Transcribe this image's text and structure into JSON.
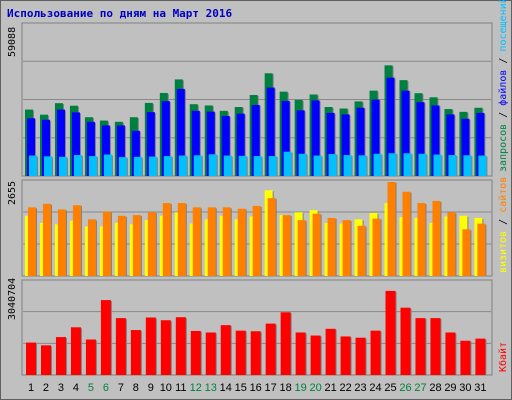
{
  "chart_data": [
    {
      "type": "bar",
      "title": "Использование по дням на Март 2016",
      "categories": [
        "1",
        "2",
        "3",
        "4",
        "5",
        "6",
        "7",
        "8",
        "9",
        "10",
        "11",
        "12",
        "13",
        "14",
        "15",
        "16",
        "17",
        "18",
        "19",
        "20",
        "21",
        "22",
        "23",
        "24",
        "25",
        "26",
        "27",
        "28",
        "29",
        "30",
        "31"
      ],
      "weekend_days": [
        "5",
        "6",
        "12",
        "13",
        "19",
        "20",
        "26",
        "27"
      ],
      "panel": "requests-files-visits",
      "ymax_label": "59088",
      "ylim": [
        0,
        59088
      ],
      "series": [
        {
          "name": "запросов",
          "color": "#008040",
          "values": [
            26000,
            24000,
            28500,
            27500,
            23000,
            21700,
            21200,
            23000,
            28600,
            32500,
            37800,
            28100,
            27600,
            25500,
            27000,
            31700,
            40200,
            33000,
            29800,
            31900,
            27000,
            26400,
            29200,
            33400,
            43300,
            37500,
            32400,
            30800,
            26200,
            25100,
            26700
          ]
        },
        {
          "name": "файлов",
          "color": "#0000ff",
          "values": [
            22600,
            22000,
            26000,
            24900,
            21200,
            19800,
            19800,
            17700,
            25000,
            29300,
            34100,
            25500,
            25200,
            23500,
            24400,
            27800,
            34600,
            29400,
            25700,
            29600,
            24700,
            24100,
            26700,
            29900,
            38500,
            33400,
            28900,
            27600,
            24100,
            22400,
            24700
          ]
        },
        {
          "name": "посещений страниц",
          "color": "#00c0ff",
          "values": [
            8000,
            7700,
            7500,
            8200,
            7800,
            8400,
            7400,
            7500,
            7600,
            7800,
            8000,
            8100,
            8500,
            8000,
            7900,
            7800,
            7800,
            9500,
            8700,
            8000,
            8600,
            8200,
            8100,
            8700,
            8900,
            8900,
            8700,
            8400,
            8200,
            8100,
            8000
          ]
        }
      ],
      "y_axis_text_parts": [
        {
          "text": "запросов",
          "color": "#008040"
        },
        {
          "text": " / ",
          "color": "#000000"
        },
        {
          "text": "файлов",
          "color": "#0000ff"
        },
        {
          "text": " / ",
          "color": "#000000"
        },
        {
          "text": "посещений страниц",
          "color": "#00c0ff"
        }
      ]
    },
    {
      "type": "bar",
      "panel": "visits-sites",
      "ymax_label": "2655",
      "ylim": [
        0,
        2655
      ],
      "series": [
        {
          "name": "визитов",
          "color": "#ffff00",
          "values": [
            1700,
            1500,
            1460,
            1560,
            1400,
            1400,
            1500,
            1460,
            1580,
            1700,
            1800,
            1480,
            1600,
            1700,
            1600,
            1680,
            2420,
            1720,
            1800,
            1860,
            1500,
            1480,
            1600,
            1780,
            2060,
            1660,
            1640,
            1500,
            1680,
            1700,
            1640
          ]
        },
        {
          "name": "сайтов",
          "color": "#ff8000",
          "values": [
            1940,
            2040,
            1880,
            2000,
            1600,
            1820,
            1700,
            1720,
            1800,
            2060,
            2060,
            1940,
            1940,
            1940,
            1900,
            1980,
            2200,
            1720,
            1580,
            1760,
            1640,
            1580,
            1420,
            1620,
            2655,
            2380,
            2060,
            2120,
            1800,
            1320,
            1480
          ]
        }
      ],
      "y_axis_text_parts": [
        {
          "text": "визитов",
          "color": "#ffff00"
        },
        {
          "text": " / ",
          "color": "#000000"
        },
        {
          "text": "сайтов",
          "color": "#ff8000"
        }
      ]
    },
    {
      "type": "bar",
      "panel": "kbytes",
      "ymax_label": "3040704",
      "ylim": [
        0,
        3040704
      ],
      "series": [
        {
          "name": "Кбайт",
          "color": "#ff0000",
          "values": [
            1060000,
            970000,
            1240000,
            1560000,
            1160000,
            2450000,
            1860000,
            1470000,
            1880000,
            1790000,
            1890000,
            1440000,
            1390000,
            1630000,
            1450000,
            1430000,
            1680000,
            2050000,
            1390000,
            1290000,
            1510000,
            1260000,
            1220000,
            1450000,
            2750000,
            2200000,
            1860000,
            1860000,
            1390000,
            1120000,
            1190000
          ]
        }
      ],
      "y_axis_text_parts": [
        {
          "text": "Кбайт",
          "color": "#ff0000"
        }
      ]
    }
  ]
}
